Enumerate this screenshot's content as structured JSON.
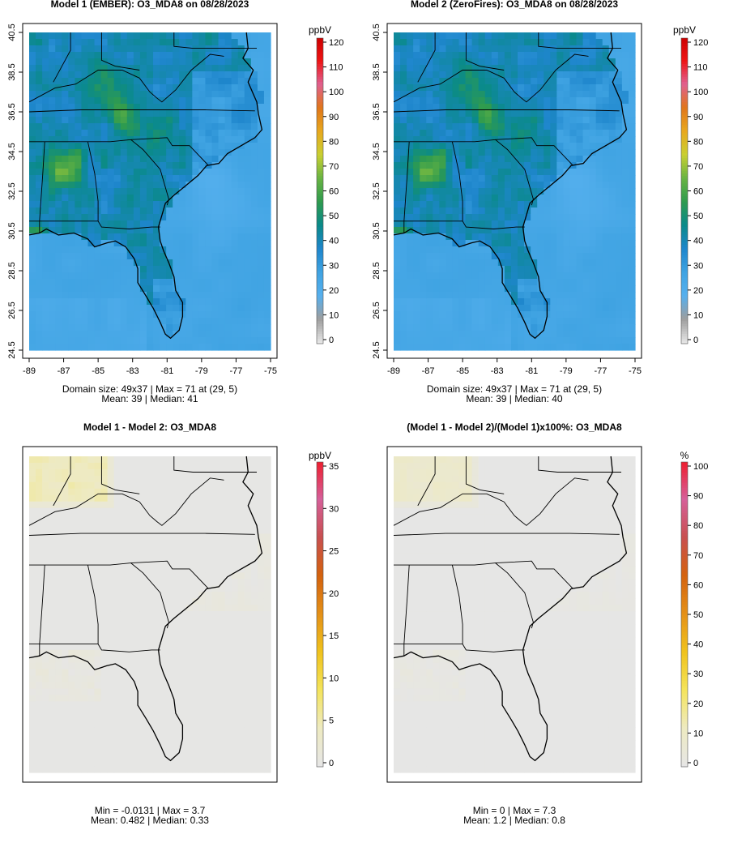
{
  "chart_data": [
    {
      "type": "heatmap",
      "title": "Model 1 (EMBER): O3_MDA8 on 08/28/2023",
      "x_ticks": [
        "-89",
        "-87",
        "-85",
        "-83",
        "-81",
        "-79",
        "-77",
        "-75"
      ],
      "y_ticks": [
        "24.5",
        "26.5",
        "28.5",
        "30.5",
        "32.5",
        "34.5",
        "36.5",
        "38.5",
        "40.5"
      ],
      "xlim": [
        -89,
        -75
      ],
      "ylim": [
        24.5,
        40.5
      ],
      "colorbar": {
        "label": "ppbV",
        "ticks": [
          "0",
          "10",
          "20",
          "30",
          "40",
          "50",
          "60",
          "70",
          "80",
          "90",
          "100",
          "110",
          "120"
        ],
        "range": [
          0,
          120
        ]
      },
      "stats": [
        "Domain size: 49x37 | Max = 71 at (29, 5)",
        "Mean: 39 |  Median: 41"
      ]
    },
    {
      "type": "heatmap",
      "title": "Model 2 (ZeroFires): O3_MDA8 on 08/28/2023",
      "x_ticks": [
        "-89",
        "-87",
        "-85",
        "-83",
        "-81",
        "-79",
        "-77",
        "-75"
      ],
      "y_ticks": [
        "24.5",
        "26.5",
        "28.5",
        "30.5",
        "32.5",
        "34.5",
        "36.5",
        "38.5",
        "40.5"
      ],
      "xlim": [
        -89,
        -75
      ],
      "ylim": [
        24.5,
        40.5
      ],
      "colorbar": {
        "label": "ppbV",
        "ticks": [
          "0",
          "10",
          "20",
          "30",
          "40",
          "50",
          "60",
          "70",
          "80",
          "90",
          "100",
          "110",
          "120"
        ],
        "range": [
          0,
          120
        ]
      },
      "stats": [
        "Domain size: 49x37 | Max = 71 at (29, 5)",
        "Mean: 39 |  Median: 40"
      ]
    },
    {
      "type": "heatmap",
      "title": "Model 1 - Model 2: O3_MDA8",
      "colorbar": {
        "label": "ppbV",
        "ticks": [
          "0",
          "5",
          "10",
          "15",
          "20",
          "25",
          "30",
          "35"
        ],
        "range": [
          0,
          35
        ]
      },
      "stats": [
        "Min = -0.0131 | Max = 3.7",
        "Mean: 0.482 |  Median: 0.33"
      ]
    },
    {
      "type": "heatmap",
      "title": "(Model 1 - Model 2)/(Model 1)x100%: O3_MDA8",
      "colorbar": {
        "label": "%",
        "ticks": [
          "0",
          "10",
          "20",
          "30",
          "40",
          "50",
          "60",
          "70",
          "80",
          "90",
          "100"
        ],
        "range": [
          0,
          100
        ]
      },
      "stats": [
        "Min = 0 | Max = 7.3",
        "Mean: 1.2 |  Median: 0.8"
      ]
    }
  ],
  "colors": {
    "o3_scale": [
      "#e6e6e6",
      "#9e9e9e",
      "#56b0ee",
      "#3fa3e2",
      "#1e86cc",
      "#0a8a8a",
      "#2f9b4e",
      "#69b443",
      "#c9cf31",
      "#e8a81e",
      "#e0761a",
      "#e06090",
      "#ee1414",
      "#cc0000"
    ],
    "diff_scale": [
      "#e6e6e6",
      "#eeeac0",
      "#f4e45a",
      "#f0c21c",
      "#e49018",
      "#d4620e",
      "#c85050",
      "#d6609a",
      "#ee1c2c"
    ]
  }
}
